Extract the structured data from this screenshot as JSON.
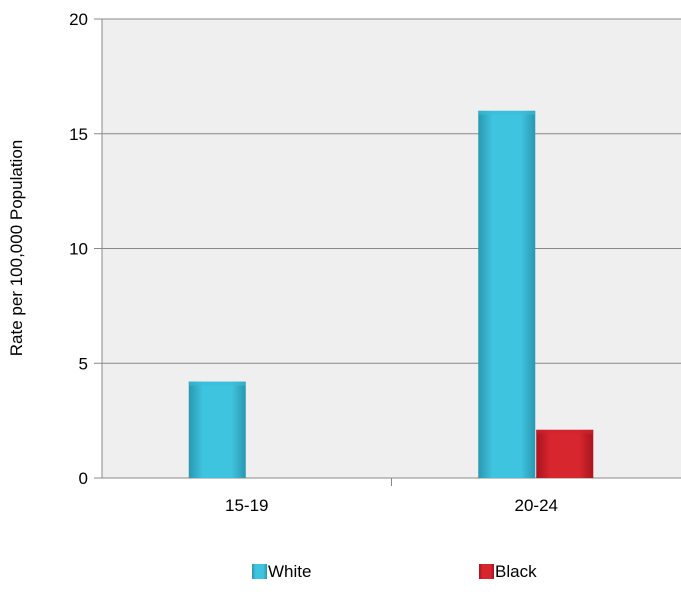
{
  "chart_data": {
    "type": "bar",
    "title": "",
    "xlabel": "",
    "ylabel": "Rate per 100,000 Population",
    "categories": [
      "15-19",
      "20-24"
    ],
    "series": [
      {
        "name": "White",
        "values": [
          4.2,
          16.0
        ],
        "color": "#3BBCD8"
      },
      {
        "name": "Black",
        "values": [
          null,
          2.1
        ],
        "color": "#D02330"
      }
    ],
    "ylim": [
      0,
      20
    ],
    "yticks": [
      0,
      5,
      10,
      15,
      20
    ],
    "grid": true,
    "legend": "bottom",
    "plot_background": "#efefef",
    "gridline_color": "#888888"
  }
}
